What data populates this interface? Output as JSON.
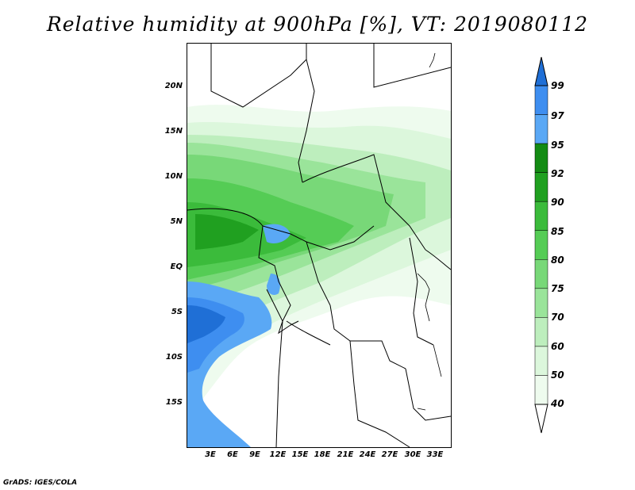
{
  "title": "Relative humidity at 900hPa [%], VT: 2019080112",
  "credit": "GrADS: IGES/COLA",
  "y_ticks": [
    "20N",
    "15N",
    "10N",
    "5N",
    "EQ",
    "5S",
    "10S",
    "15S"
  ],
  "x_ticks": [
    "3E",
    "6E",
    "9E",
    "12E",
    "15E",
    "18E",
    "21E",
    "24E",
    "27E",
    "30E",
    "33E"
  ],
  "colorbar": {
    "levels": [
      "99",
      "97",
      "95",
      "92",
      "90",
      "85",
      "80",
      "75",
      "70",
      "60",
      "50",
      "40"
    ],
    "colors": [
      "#1f6fd6",
      "#3e8ef0",
      "#5aa8f5",
      "#138b13",
      "#20a020",
      "#3bbb3b",
      "#55cc55",
      "#78d878",
      "#9ae49a",
      "#bdeebd",
      "#dcf7dc",
      "#eefbee",
      "#ffffff"
    ]
  },
  "chart_data": {
    "type": "heatmap",
    "title": "Relative humidity at 900hPa [%], VT: 2019080112",
    "xlabel": "",
    "ylabel": "",
    "x_ticks": [
      "3E",
      "6E",
      "9E",
      "12E",
      "15E",
      "18E",
      "21E",
      "24E",
      "27E",
      "30E",
      "33E"
    ],
    "y_ticks": [
      "20N",
      "15N",
      "10N",
      "5N",
      "EQ",
      "5S",
      "10S",
      "15S"
    ],
    "lon_range": [
      0,
      35
    ],
    "lat_range": [
      -20,
      25
    ],
    "levels": [
      40,
      50,
      60,
      70,
      75,
      80,
      85,
      90,
      92,
      95,
      97,
      99
    ],
    "units": "%"
  }
}
